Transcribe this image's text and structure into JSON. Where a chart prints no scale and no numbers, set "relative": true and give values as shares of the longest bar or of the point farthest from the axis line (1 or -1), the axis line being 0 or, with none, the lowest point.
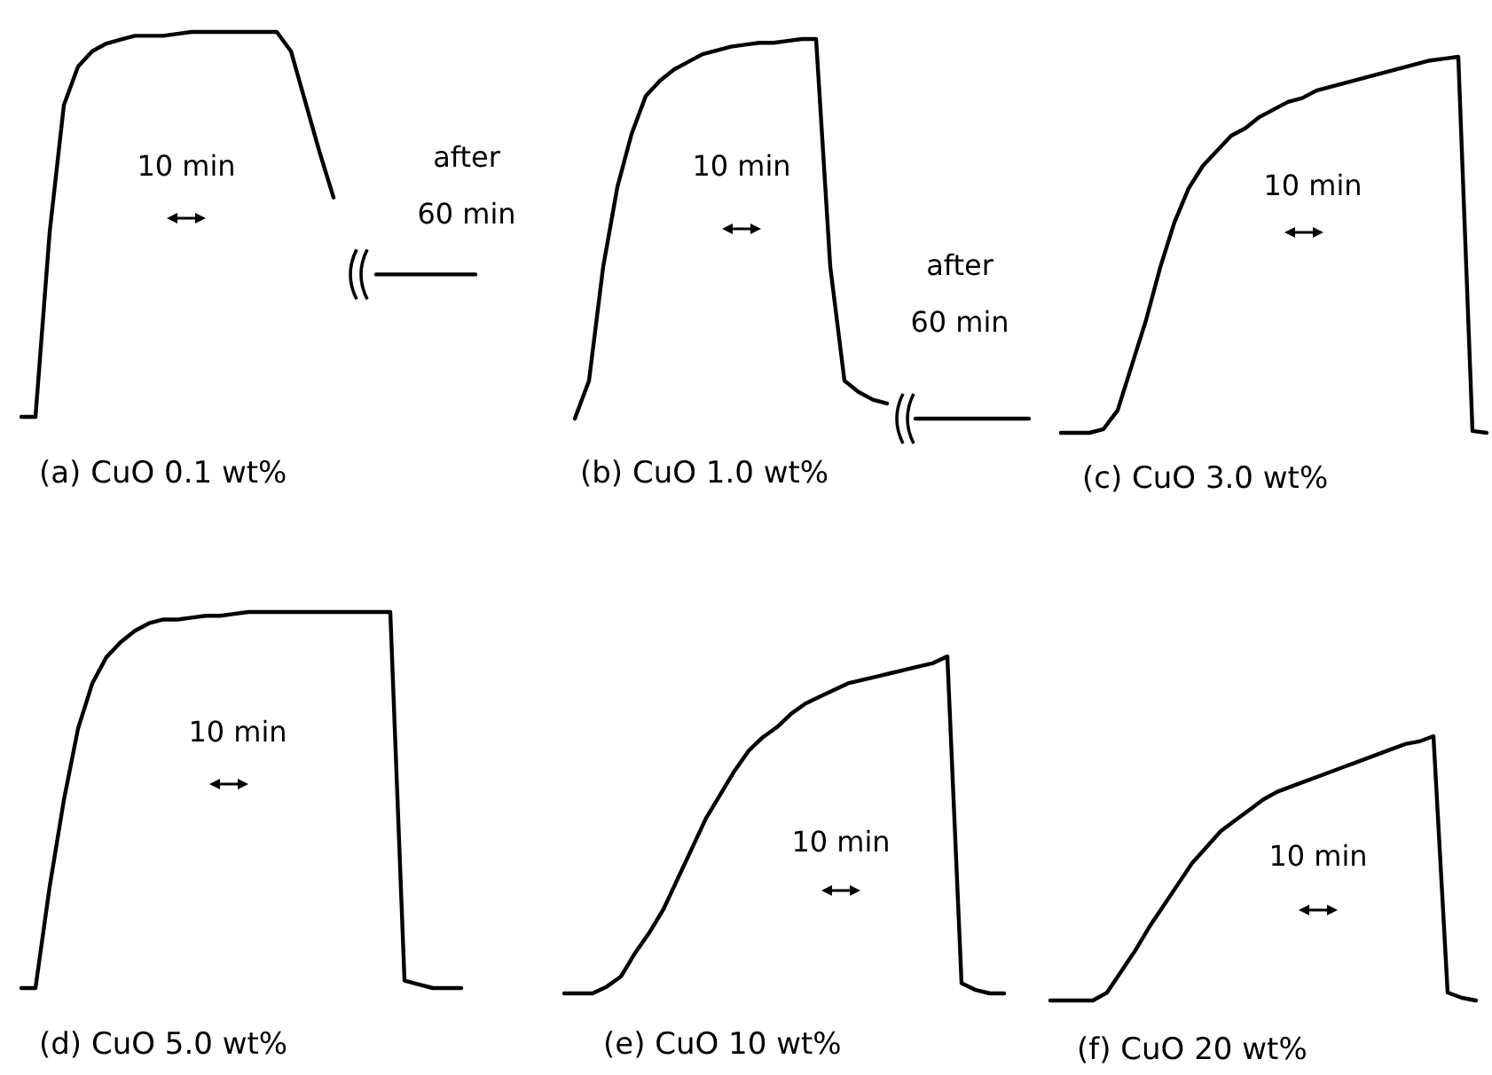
{
  "chart_data": [
    {
      "type": "line",
      "relative": true,
      "xlabel": "(a) CuO 0.1 wt%",
      "annotations": [
        "10 min",
        "after 60 min"
      ],
      "categories": [
        null,
        null,
        null,
        null,
        null,
        null,
        null,
        null,
        null,
        null,
        null,
        null,
        null,
        null,
        null,
        null,
        null,
        null,
        null,
        null,
        null,
        null,
        null,
        null,
        null,
        null,
        null,
        null,
        null,
        null,
        null,
        null,
        null
      ],
      "series": [
        {
          "color": "#000000",
          "values": [
            0,
            0,
            0.48,
            0.81,
            0.91,
            0.95,
            0.97,
            0.98,
            0.99,
            0.99,
            0.99,
            0.995,
            1,
            1,
            1,
            1,
            1,
            1,
            1,
            0.95,
            0.82,
            0.69,
            0.57,
            null,
            null,
            null,
            null,
            null,
            null,
            null,
            null,
            null,
            null
          ]
        },
        {
          "color": "#000000",
          "values": [
            null,
            null,
            null,
            null,
            null,
            null,
            null,
            null,
            null,
            null,
            null,
            null,
            null,
            null,
            null,
            null,
            null,
            null,
            null,
            null,
            null,
            null,
            null,
            null,
            null,
            0.37,
            0.37,
            0.37,
            0.37,
            0.37,
            0.37,
            0.37,
            0.37
          ]
        }
      ]
    },
    {
      "type": "line",
      "relative": true,
      "xlabel": "(b) CuO 1.0 wt%",
      "annotations": [
        "10 min",
        "after 60 min"
      ],
      "categories": [
        null,
        null,
        null,
        null,
        null,
        null,
        null,
        null,
        null,
        null,
        null,
        null,
        null,
        null,
        null,
        null,
        null,
        null,
        null,
        null,
        null,
        null,
        null,
        null,
        null,
        null,
        null,
        null,
        null,
        null,
        null,
        null,
        null
      ],
      "series": [
        {
          "color": "#000000",
          "values": [
            0,
            0.1,
            0.4,
            0.61,
            0.75,
            0.85,
            0.89,
            0.92,
            0.94,
            0.96,
            0.97,
            0.98,
            0.985,
            0.99,
            0.99,
            0.995,
            1,
            1,
            0.4,
            0.1,
            0.07,
            0.05,
            0.04,
            null,
            null,
            null,
            null,
            null,
            null,
            null,
            null,
            null,
            null
          ]
        },
        {
          "color": "#000000",
          "values": [
            null,
            null,
            null,
            null,
            null,
            null,
            null,
            null,
            null,
            null,
            null,
            null,
            null,
            null,
            null,
            null,
            null,
            null,
            null,
            null,
            null,
            null,
            null,
            null,
            0,
            0,
            0,
            0,
            0,
            0,
            0,
            0,
            0
          ]
        }
      ]
    },
    {
      "type": "line",
      "relative": true,
      "xlabel": "(c) CuO 3.0 wt%",
      "annotations": [
        "10 min"
      ],
      "categories": [
        null,
        null,
        null,
        null,
        null,
        null,
        null,
        null,
        null,
        null,
        null,
        null,
        null,
        null,
        null,
        null,
        null,
        null,
        null,
        null,
        null,
        null,
        null,
        null,
        null,
        null,
        null,
        null,
        null,
        null,
        null
      ],
      "series": [
        {
          "color": "#000000",
          "values": [
            0,
            0,
            0,
            0.01,
            0.06,
            0.18,
            0.3,
            0.44,
            0.56,
            0.65,
            0.71,
            0.75,
            0.79,
            0.81,
            0.84,
            0.86,
            0.88,
            0.89,
            0.91,
            0.92,
            0.93,
            0.94,
            0.95,
            0.96,
            0.97,
            0.98,
            0.99,
            0.995,
            1,
            0.005,
            0
          ]
        }
      ]
    },
    {
      "type": "line",
      "relative": true,
      "xlabel": "(d) CuO 5.0 wt%",
      "annotations": [
        "10 min"
      ],
      "categories": [
        null,
        null,
        null,
        null,
        null,
        null,
        null,
        null,
        null,
        null,
        null,
        null,
        null,
        null,
        null,
        null,
        null,
        null,
        null,
        null,
        null,
        null,
        null,
        null,
        null,
        null,
        null,
        null,
        null,
        null,
        null,
        null
      ],
      "series": [
        {
          "color": "#000000",
          "values": [
            0,
            0,
            0.27,
            0.5,
            0.69,
            0.81,
            0.88,
            0.92,
            0.95,
            0.97,
            0.98,
            0.98,
            0.985,
            0.99,
            0.99,
            0.995,
            1,
            1,
            1,
            1,
            1,
            1,
            1,
            1,
            1,
            1,
            1,
            0.02,
            0.01,
            0,
            0,
            0
          ]
        }
      ]
    },
    {
      "type": "line",
      "relative": true,
      "xlabel": "(e) CuO 10 wt%",
      "annotations": [
        "10 min"
      ],
      "categories": [
        null,
        null,
        null,
        null,
        null,
        null,
        null,
        null,
        null,
        null,
        null,
        null,
        null,
        null,
        null,
        null,
        null,
        null,
        null,
        null,
        null,
        null,
        null,
        null,
        null,
        null,
        null,
        null,
        null,
        null,
        null,
        null
      ],
      "series": [
        {
          "color": "#000000",
          "values": [
            0,
            0,
            0,
            0.02,
            0.05,
            0.12,
            0.18,
            0.25,
            0.34,
            0.43,
            0.52,
            0.59,
            0.66,
            0.72,
            0.76,
            0.79,
            0.83,
            0.86,
            0.88,
            0.9,
            0.92,
            0.93,
            0.94,
            0.95,
            0.96,
            0.97,
            0.98,
            1,
            0.03,
            0.01,
            0,
            0
          ]
        }
      ]
    },
    {
      "type": "line",
      "relative": true,
      "xlabel": "(f) CuO 20 wt%",
      "annotations": [
        "10 min"
      ],
      "categories": [
        null,
        null,
        null,
        null,
        null,
        null,
        null,
        null,
        null,
        null,
        null,
        null,
        null,
        null,
        null,
        null,
        null,
        null,
        null,
        null,
        null,
        null,
        null,
        null,
        null,
        null,
        null,
        null,
        null,
        null,
        null
      ],
      "series": [
        {
          "color": "#000000",
          "values": [
            0,
            0,
            0,
            0,
            0.03,
            0.11,
            0.19,
            0.28,
            0.36,
            0.44,
            0.52,
            0.58,
            0.64,
            0.68,
            0.72,
            0.76,
            0.79,
            0.81,
            0.83,
            0.85,
            0.87,
            0.89,
            0.91,
            0.93,
            0.95,
            0.97,
            0.98,
            1,
            0.03,
            0.01,
            0
          ]
        }
      ]
    }
  ]
}
